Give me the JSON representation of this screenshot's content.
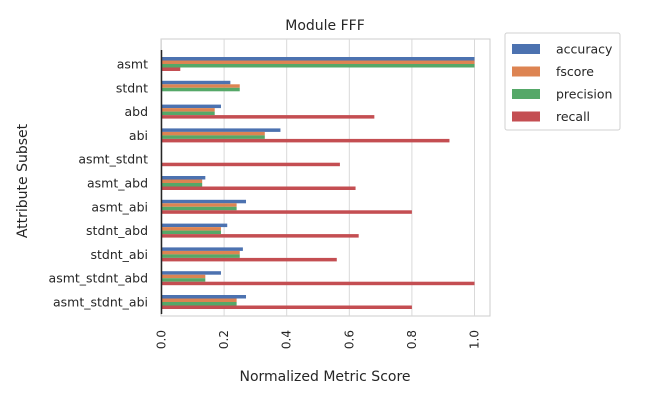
{
  "chart_data": {
    "type": "bar",
    "orientation": "horizontal",
    "title": "Module FFF",
    "xlabel": "Normalized Metric Score",
    "ylabel": "Attribute Subset",
    "xlim": [
      0,
      1.05
    ],
    "xticks": [
      "0.0",
      "0.2",
      "0.4",
      "0.6",
      "0.8",
      "1.0"
    ],
    "grid": "vertical",
    "legend_position": "outside-top-right",
    "categories": [
      "asmt",
      "stdnt",
      "abd",
      "abi",
      "asmt_stdnt",
      "asmt_abd",
      "asmt_abi",
      "stdnt_abd",
      "stdnt_abi",
      "asmt_stdnt_abd",
      "asmt_stdnt_abi"
    ],
    "series": [
      {
        "name": "accuracy",
        "color": "#4c72b0",
        "values": [
          1.0,
          0.22,
          0.19,
          0.38,
          0.0,
          0.14,
          0.27,
          0.21,
          0.26,
          0.19,
          0.27
        ]
      },
      {
        "name": "fscore",
        "color": "#dd8452",
        "values": [
          1.0,
          0.25,
          0.17,
          0.33,
          0.0,
          0.13,
          0.24,
          0.19,
          0.25,
          0.14,
          0.24
        ]
      },
      {
        "name": "precision",
        "color": "#55a868",
        "values": [
          1.0,
          0.25,
          0.17,
          0.33,
          0.0,
          0.13,
          0.24,
          0.19,
          0.25,
          0.14,
          0.24
        ]
      },
      {
        "name": "recall",
        "color": "#c44e52",
        "values": [
          0.06,
          0.0,
          0.68,
          0.92,
          0.57,
          0.62,
          0.8,
          0.63,
          0.56,
          1.0,
          0.8
        ]
      }
    ]
  }
}
